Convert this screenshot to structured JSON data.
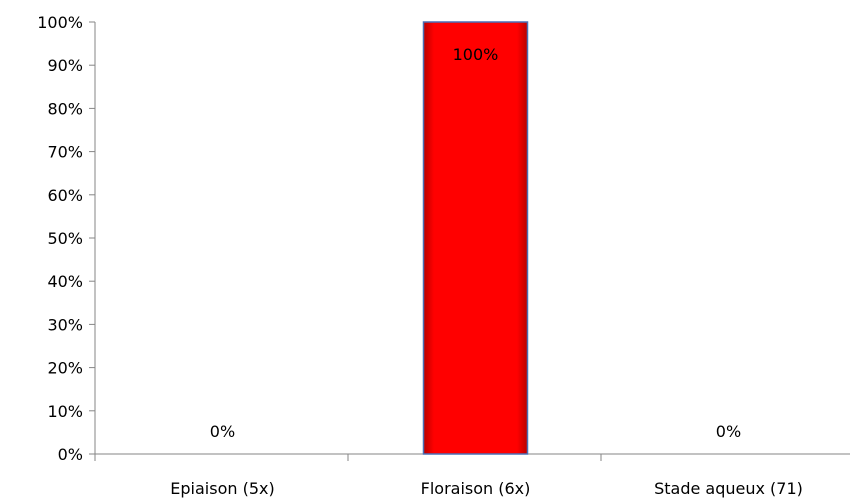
{
  "chart_data": {
    "type": "bar",
    "title": "",
    "xlabel": "",
    "ylabel": "",
    "categories": [
      "Epiaison (5x)",
      "Floraison (6x)",
      "Stade aqueux (71)"
    ],
    "values": [
      0,
      100,
      0
    ],
    "value_labels": [
      "0%",
      "100%",
      "0%"
    ],
    "ylim": [
      0,
      100
    ],
    "y_ticks": [
      0,
      10,
      20,
      30,
      40,
      50,
      60,
      70,
      80,
      90,
      100
    ],
    "y_tick_labels": [
      "0%",
      "10%",
      "20%",
      "30%",
      "40%",
      "50%",
      "60%",
      "70%",
      "80%",
      "90%",
      "100%"
    ],
    "grid": false,
    "legend": "none",
    "bar_color": "#ff0000",
    "bar_edge_color": "#4a6fb5"
  }
}
